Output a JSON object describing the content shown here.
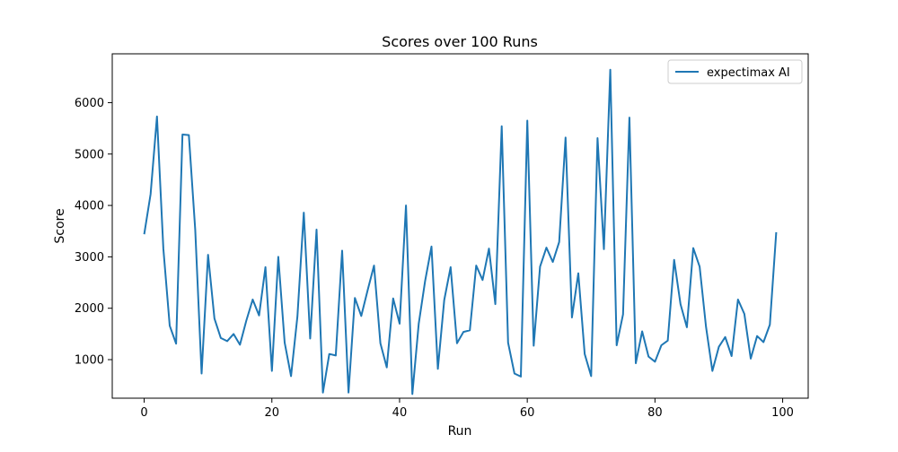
{
  "chart_data": {
    "type": "line",
    "title": "Scores over 100 Runs",
    "xlabel": "Run",
    "ylabel": "Score",
    "xlim": [
      -5,
      104
    ],
    "ylim": [
      250,
      6950
    ],
    "xticks": [
      0,
      20,
      40,
      60,
      80,
      100
    ],
    "yticks": [
      1000,
      2000,
      3000,
      4000,
      5000,
      6000
    ],
    "legend": "upper right",
    "grid": false,
    "series": [
      {
        "name": "expectimax AI",
        "color": "#1f77b4",
        "x": [
          0,
          1,
          2,
          3,
          4,
          5,
          6,
          7,
          8,
          9,
          10,
          11,
          12,
          13,
          14,
          15,
          16,
          17,
          18,
          19,
          20,
          21,
          22,
          23,
          24,
          25,
          26,
          27,
          28,
          29,
          30,
          31,
          32,
          33,
          34,
          35,
          36,
          37,
          38,
          39,
          40,
          41,
          42,
          43,
          44,
          45,
          46,
          47,
          48,
          49,
          50,
          51,
          52,
          53,
          54,
          55,
          56,
          57,
          58,
          59,
          60,
          61,
          62,
          63,
          64,
          65,
          66,
          67,
          68,
          69,
          70,
          71,
          72,
          73,
          74,
          75,
          76,
          77,
          78,
          79,
          80,
          81,
          82,
          83,
          84,
          85,
          86,
          87,
          88,
          89,
          90,
          91,
          92,
          93,
          94,
          95,
          96,
          97,
          98,
          99
        ],
        "y": [
          3440,
          4220,
          5730,
          3160,
          1660,
          1310,
          5380,
          5370,
          3530,
          730,
          3040,
          1800,
          1420,
          1360,
          1500,
          1290,
          1760,
          2170,
          1860,
          2800,
          780,
          3000,
          1330,
          680,
          1840,
          3860,
          1410,
          3530,
          360,
          1110,
          1080,
          3120,
          360,
          2200,
          1850,
          2350,
          2830,
          1320,
          850,
          2190,
          1700,
          4000,
          330,
          1700,
          2530,
          3200,
          820,
          2160,
          2800,
          1320,
          1540,
          1570,
          2830,
          2550,
          3160,
          2080,
          5540,
          1330,
          730,
          670,
          5650,
          1270,
          2810,
          3180,
          2900,
          3290,
          5320,
          1820,
          2680,
          1110,
          680,
          5310,
          3150,
          6640,
          1280,
          1880,
          5710,
          930,
          1550,
          1060,
          960,
          1280,
          1370,
          2940,
          2080,
          1630,
          3170,
          2810,
          1640,
          780,
          1250,
          1440,
          1070,
          2170,
          1890,
          1020,
          1460,
          1340,
          1680,
          3480
        ]
      }
    ]
  }
}
